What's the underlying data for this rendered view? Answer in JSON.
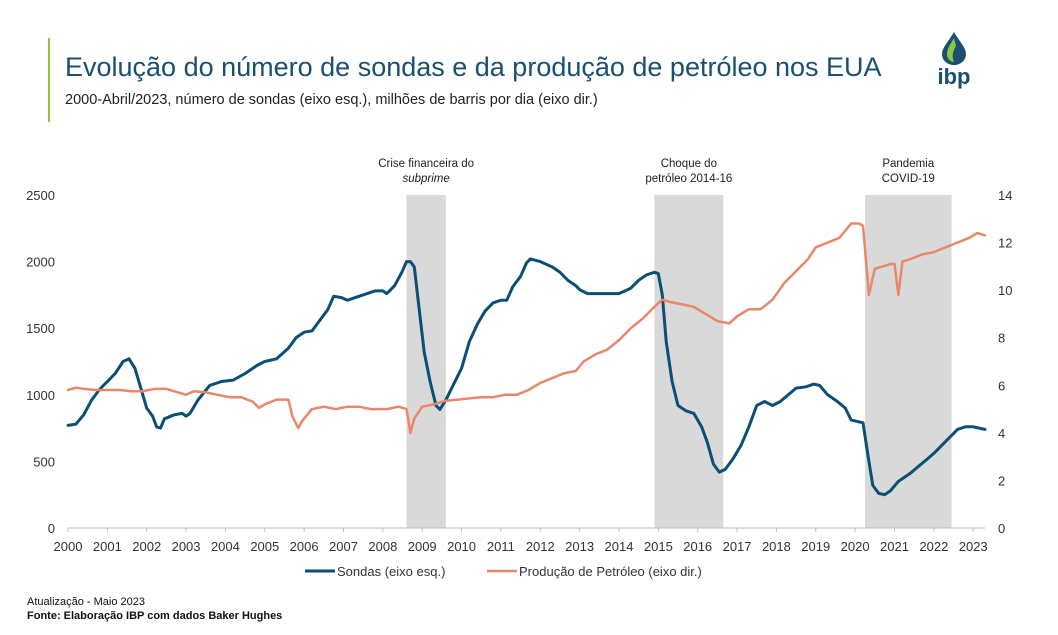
{
  "header": {
    "title": "Evolução do número de sondas e da produção de petróleo nos EUA",
    "subtitle": "2000-Abril/2023, número de sondas (eixo esq.), milhões de barris por dia (eixo dir.)",
    "logo_text": "ibp"
  },
  "footer": {
    "update": "Atualização - Maio 2023",
    "source": "Fonte: Elaboração IBP com dados Baker Hughes"
  },
  "colors": {
    "rigs": "#0b4f74",
    "production": "#e8876b",
    "shade": "#d9d9d9",
    "logo_green": "#8cc63f",
    "logo_blue": "#1b4f72"
  },
  "chart_data": {
    "type": "line",
    "x_range": [
      2000,
      2023.3
    ],
    "x_ticks": [
      "2000",
      "2001",
      "2002",
      "2003",
      "2004",
      "2005",
      "2006",
      "2007",
      "2008",
      "2009",
      "2010",
      "2011",
      "2012",
      "2013",
      "2014",
      "2015",
      "2016",
      "2017",
      "2018",
      "2019",
      "2020",
      "2021",
      "2022",
      "2023"
    ],
    "y_left": {
      "label": "Sondas",
      "range": [
        0,
        2500
      ],
      "ticks": [
        "0",
        "500",
        "1000",
        "1500",
        "2000",
        "2500"
      ]
    },
    "y_right": {
      "label": "Produção de Petróleo",
      "range": [
        0,
        14
      ],
      "ticks": [
        "0",
        "2",
        "4",
        "6",
        "8",
        "10",
        "12",
        "14"
      ]
    },
    "shaded_periods": [
      {
        "start": 2008.6,
        "end": 2009.6,
        "label_lines": [
          "Crise financeira do",
          "subprime"
        ]
      },
      {
        "start": 2014.9,
        "end": 2016.65,
        "label_lines": [
          "Choque do",
          "petróleo 2014-16"
        ]
      },
      {
        "start": 2020.25,
        "end": 2022.45,
        "label_lines": [
          "Pandemia",
          "COVID-19"
        ]
      }
    ],
    "series": [
      {
        "name": "Sondas (eixo esq.)",
        "axis": "left",
        "points": [
          [
            2000.0,
            770
          ],
          [
            2000.2,
            780
          ],
          [
            2000.4,
            850
          ],
          [
            2000.6,
            960
          ],
          [
            2000.8,
            1040
          ],
          [
            2001.0,
            1100
          ],
          [
            2001.2,
            1160
          ],
          [
            2001.4,
            1250
          ],
          [
            2001.55,
            1270
          ],
          [
            2001.7,
            1200
          ],
          [
            2001.85,
            1050
          ],
          [
            2002.0,
            900
          ],
          [
            2002.15,
            840
          ],
          [
            2002.25,
            760
          ],
          [
            2002.35,
            750
          ],
          [
            2002.45,
            820
          ],
          [
            2002.7,
            850
          ],
          [
            2002.9,
            860
          ],
          [
            2003.0,
            840
          ],
          [
            2003.1,
            860
          ],
          [
            2003.3,
            960
          ],
          [
            2003.6,
            1070
          ],
          [
            2003.9,
            1100
          ],
          [
            2004.2,
            1110
          ],
          [
            2004.5,
            1160
          ],
          [
            2004.8,
            1220
          ],
          [
            2005.0,
            1250
          ],
          [
            2005.3,
            1270
          ],
          [
            2005.6,
            1350
          ],
          [
            2005.8,
            1430
          ],
          [
            2006.0,
            1470
          ],
          [
            2006.2,
            1480
          ],
          [
            2006.4,
            1560
          ],
          [
            2006.6,
            1640
          ],
          [
            2006.75,
            1740
          ],
          [
            2006.95,
            1730
          ],
          [
            2007.1,
            1710
          ],
          [
            2007.3,
            1730
          ],
          [
            2007.6,
            1760
          ],
          [
            2007.8,
            1780
          ],
          [
            2008.0,
            1780
          ],
          [
            2008.1,
            1760
          ],
          [
            2008.3,
            1820
          ],
          [
            2008.5,
            1930
          ],
          [
            2008.6,
            2000
          ],
          [
            2008.7,
            2000
          ],
          [
            2008.8,
            1960
          ],
          [
            2008.9,
            1700
          ],
          [
            2009.05,
            1320
          ],
          [
            2009.2,
            1100
          ],
          [
            2009.35,
            920
          ],
          [
            2009.45,
            890
          ],
          [
            2009.6,
            960
          ],
          [
            2009.8,
            1080
          ],
          [
            2010.0,
            1200
          ],
          [
            2010.2,
            1400
          ],
          [
            2010.4,
            1530
          ],
          [
            2010.6,
            1630
          ],
          [
            2010.8,
            1690
          ],
          [
            2011.0,
            1710
          ],
          [
            2011.15,
            1710
          ],
          [
            2011.3,
            1810
          ],
          [
            2011.5,
            1890
          ],
          [
            2011.65,
            1990
          ],
          [
            2011.75,
            2020
          ],
          [
            2012.0,
            2000
          ],
          [
            2012.3,
            1960
          ],
          [
            2012.5,
            1920
          ],
          [
            2012.7,
            1860
          ],
          [
            2012.9,
            1820
          ],
          [
            2013.0,
            1790
          ],
          [
            2013.2,
            1760
          ],
          [
            2013.5,
            1760
          ],
          [
            2013.8,
            1760
          ],
          [
            2014.0,
            1760
          ],
          [
            2014.3,
            1800
          ],
          [
            2014.5,
            1860
          ],
          [
            2014.7,
            1900
          ],
          [
            2014.9,
            1920
          ],
          [
            2015.0,
            1910
          ],
          [
            2015.1,
            1750
          ],
          [
            2015.2,
            1400
          ],
          [
            2015.35,
            1100
          ],
          [
            2015.5,
            920
          ],
          [
            2015.7,
            880
          ],
          [
            2015.9,
            860
          ],
          [
            2016.1,
            760
          ],
          [
            2016.25,
            640
          ],
          [
            2016.4,
            480
          ],
          [
            2016.55,
            420
          ],
          [
            2016.7,
            440
          ],
          [
            2016.9,
            520
          ],
          [
            2017.1,
            620
          ],
          [
            2017.3,
            760
          ],
          [
            2017.5,
            920
          ],
          [
            2017.7,
            950
          ],
          [
            2017.9,
            920
          ],
          [
            2018.1,
            950
          ],
          [
            2018.3,
            1000
          ],
          [
            2018.5,
            1050
          ],
          [
            2018.75,
            1060
          ],
          [
            2018.95,
            1080
          ],
          [
            2019.1,
            1070
          ],
          [
            2019.3,
            1000
          ],
          [
            2019.55,
            950
          ],
          [
            2019.75,
            900
          ],
          [
            2019.9,
            810
          ],
          [
            2020.2,
            790
          ],
          [
            2020.35,
            500
          ],
          [
            2020.45,
            320
          ],
          [
            2020.6,
            260
          ],
          [
            2020.75,
            250
          ],
          [
            2020.9,
            280
          ],
          [
            2021.1,
            350
          ],
          [
            2021.4,
            410
          ],
          [
            2021.6,
            460
          ],
          [
            2021.8,
            510
          ],
          [
            2022.0,
            560
          ],
          [
            2022.2,
            620
          ],
          [
            2022.4,
            680
          ],
          [
            2022.6,
            740
          ],
          [
            2022.8,
            760
          ],
          [
            2023.0,
            760
          ],
          [
            2023.15,
            750
          ],
          [
            2023.3,
            740
          ]
        ]
      },
      {
        "name": "Produção de Petróleo (eixo dir.)",
        "axis": "right",
        "points": [
          [
            2000.0,
            5.8
          ],
          [
            2000.2,
            5.9
          ],
          [
            2000.4,
            5.85
          ],
          [
            2000.7,
            5.8
          ],
          [
            2001.0,
            5.8
          ],
          [
            2001.3,
            5.8
          ],
          [
            2001.6,
            5.75
          ],
          [
            2001.9,
            5.75
          ],
          [
            2002.2,
            5.85
          ],
          [
            2002.5,
            5.85
          ],
          [
            2002.8,
            5.7
          ],
          [
            2003.0,
            5.6
          ],
          [
            2003.2,
            5.75
          ],
          [
            2003.5,
            5.7
          ],
          [
            2003.8,
            5.6
          ],
          [
            2004.1,
            5.5
          ],
          [
            2004.4,
            5.5
          ],
          [
            2004.7,
            5.3
          ],
          [
            2004.85,
            5.05
          ],
          [
            2005.0,
            5.2
          ],
          [
            2005.3,
            5.4
          ],
          [
            2005.6,
            5.4
          ],
          [
            2005.7,
            4.7
          ],
          [
            2005.85,
            4.2
          ],
          [
            2005.95,
            4.5
          ],
          [
            2006.2,
            5.0
          ],
          [
            2006.5,
            5.1
          ],
          [
            2006.8,
            5.0
          ],
          [
            2007.1,
            5.1
          ],
          [
            2007.4,
            5.1
          ],
          [
            2007.7,
            5.0
          ],
          [
            2007.9,
            5.0
          ],
          [
            2008.1,
            5.0
          ],
          [
            2008.4,
            5.1
          ],
          [
            2008.6,
            5.0
          ],
          [
            2008.7,
            4.0
          ],
          [
            2008.8,
            4.6
          ],
          [
            2009.0,
            5.1
          ],
          [
            2009.3,
            5.2
          ],
          [
            2009.6,
            5.35
          ],
          [
            2009.9,
            5.4
          ],
          [
            2010.2,
            5.45
          ],
          [
            2010.5,
            5.5
          ],
          [
            2010.8,
            5.5
          ],
          [
            2011.1,
            5.6
          ],
          [
            2011.4,
            5.6
          ],
          [
            2011.7,
            5.8
          ],
          [
            2012.0,
            6.1
          ],
          [
            2012.3,
            6.3
          ],
          [
            2012.6,
            6.5
          ],
          [
            2012.9,
            6.6
          ],
          [
            2013.1,
            7.0
          ],
          [
            2013.4,
            7.3
          ],
          [
            2013.7,
            7.5
          ],
          [
            2014.0,
            7.9
          ],
          [
            2014.3,
            8.4
          ],
          [
            2014.6,
            8.8
          ],
          [
            2014.9,
            9.3
          ],
          [
            2015.1,
            9.6
          ],
          [
            2015.3,
            9.5
          ],
          [
            2015.6,
            9.4
          ],
          [
            2015.9,
            9.3
          ],
          [
            2016.2,
            9.0
          ],
          [
            2016.5,
            8.7
          ],
          [
            2016.8,
            8.6
          ],
          [
            2017.0,
            8.9
          ],
          [
            2017.3,
            9.2
          ],
          [
            2017.6,
            9.2
          ],
          [
            2017.9,
            9.6
          ],
          [
            2018.2,
            10.3
          ],
          [
            2018.5,
            10.8
          ],
          [
            2018.8,
            11.3
          ],
          [
            2019.0,
            11.8
          ],
          [
            2019.3,
            12.0
          ],
          [
            2019.6,
            12.2
          ],
          [
            2019.9,
            12.8
          ],
          [
            2020.1,
            12.8
          ],
          [
            2020.2,
            12.7
          ],
          [
            2020.35,
            9.8
          ],
          [
            2020.5,
            10.9
          ],
          [
            2020.7,
            11.0
          ],
          [
            2020.9,
            11.1
          ],
          [
            2021.0,
            11.1
          ],
          [
            2021.1,
            9.8
          ],
          [
            2021.2,
            11.2
          ],
          [
            2021.4,
            11.3
          ],
          [
            2021.7,
            11.5
          ],
          [
            2022.0,
            11.6
          ],
          [
            2022.3,
            11.8
          ],
          [
            2022.6,
            12.0
          ],
          [
            2022.9,
            12.2
          ],
          [
            2023.1,
            12.4
          ],
          [
            2023.3,
            12.3
          ]
        ]
      }
    ]
  }
}
